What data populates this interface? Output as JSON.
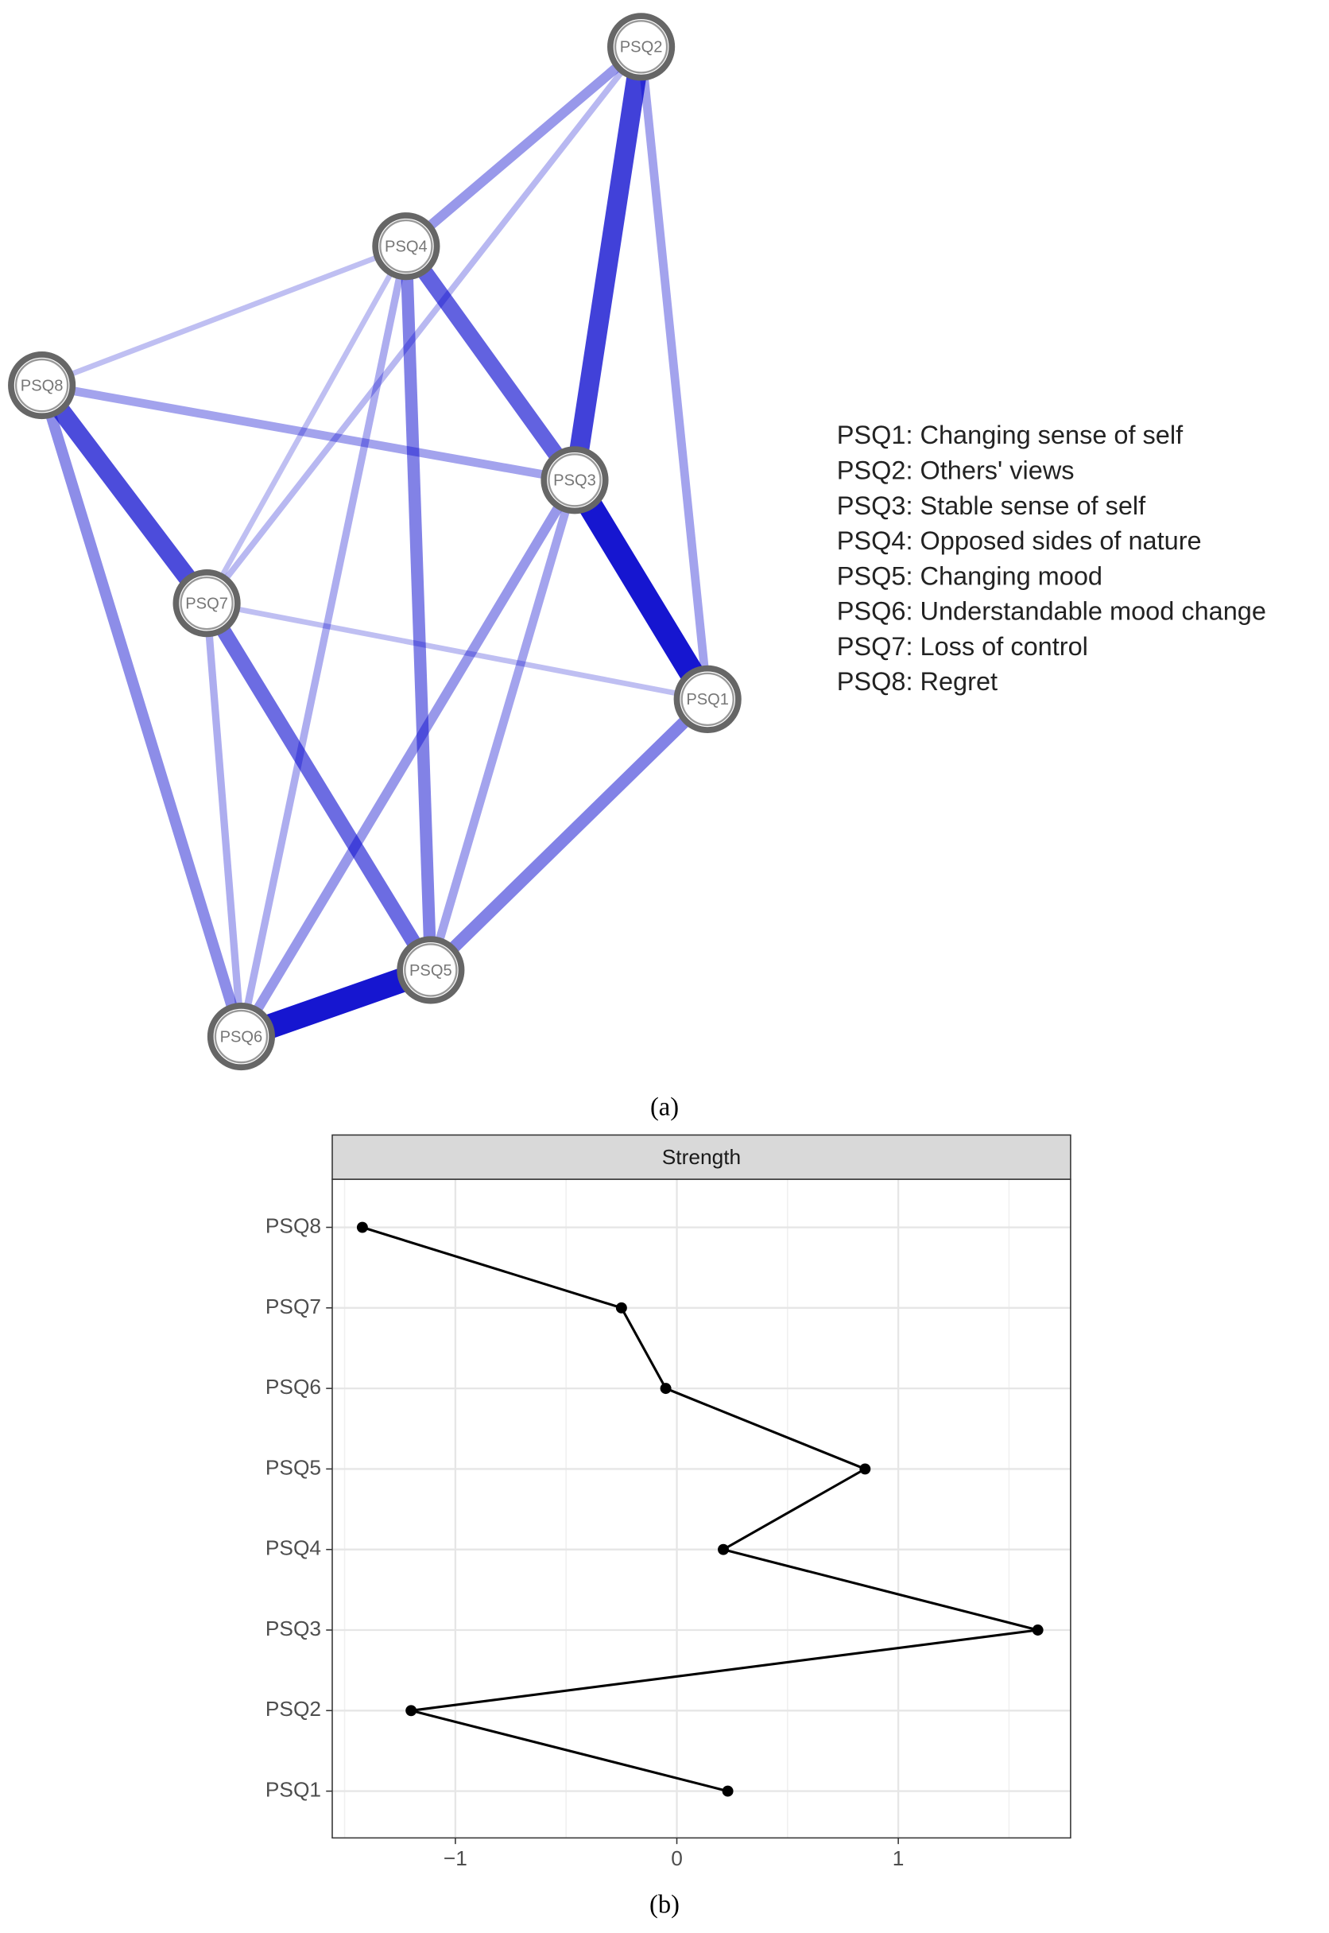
{
  "chart_data": [
    {
      "type": "network",
      "caption": "(a)",
      "nodes": [
        "PSQ1",
        "PSQ2",
        "PSQ3",
        "PSQ4",
        "PSQ5",
        "PSQ6",
        "PSQ7",
        "PSQ8"
      ],
      "edges": [
        {
          "source": "PSQ3",
          "target": "PSQ1",
          "weight": 0.9
        },
        {
          "source": "PSQ5",
          "target": "PSQ6",
          "weight": 0.9
        },
        {
          "source": "PSQ2",
          "target": "PSQ3",
          "weight": 0.7
        },
        {
          "source": "PSQ8",
          "target": "PSQ7",
          "weight": 0.65
        },
        {
          "source": "PSQ4",
          "target": "PSQ3",
          "weight": 0.55
        },
        {
          "source": "PSQ7",
          "target": "PSQ5",
          "weight": 0.5
        },
        {
          "source": "PSQ1",
          "target": "PSQ5",
          "weight": 0.4
        },
        {
          "source": "PSQ4",
          "target": "PSQ5",
          "weight": 0.4
        },
        {
          "source": "PSQ8",
          "target": "PSQ6",
          "weight": 0.35
        },
        {
          "source": "PSQ2",
          "target": "PSQ4",
          "weight": 0.3
        },
        {
          "source": "PSQ3",
          "target": "PSQ6",
          "weight": 0.3
        },
        {
          "source": "PSQ2",
          "target": "PSQ1",
          "weight": 0.25
        },
        {
          "source": "PSQ8",
          "target": "PSQ3",
          "weight": 0.25
        },
        {
          "source": "PSQ3",
          "target": "PSQ5",
          "weight": 0.25
        },
        {
          "source": "PSQ4",
          "target": "PSQ6",
          "weight": 0.2
        },
        {
          "source": "PSQ7",
          "target": "PSQ6",
          "weight": 0.2
        },
        {
          "source": "PSQ2",
          "target": "PSQ7",
          "weight": 0.15
        },
        {
          "source": "PSQ4",
          "target": "PSQ7",
          "weight": 0.12
        },
        {
          "source": "PSQ8",
          "target": "PSQ4",
          "weight": 0.12
        },
        {
          "source": "PSQ7",
          "target": "PSQ1",
          "weight": 0.12
        }
      ],
      "color": "#0000cc",
      "legend": [
        "PSQ1: Changing sense of self",
        "PSQ2: Others' views",
        "PSQ3: Stable sense of self",
        "PSQ4: Opposed sides of nature",
        "PSQ5: Changing mood",
        "PSQ6: Understandable mood change",
        "PSQ7: Loss of control",
        "PSQ8: Regret"
      ]
    },
    {
      "type": "line",
      "caption": "(b)",
      "strip": "Strength",
      "orientation": "horizontal",
      "categories": [
        "PSQ1",
        "PSQ2",
        "PSQ3",
        "PSQ4",
        "PSQ5",
        "PSQ6",
        "PSQ7",
        "PSQ8"
      ],
      "values": [
        0.23,
        -1.2,
        1.63,
        0.21,
        0.85,
        -0.05,
        -0.25,
        -1.42
      ],
      "color": "#000000",
      "xlim": [
        -1.556,
        1.778
      ],
      "xticks": [
        {
          "value": -1,
          "label": "−1"
        },
        0,
        1
      ],
      "grid": true
    }
  ]
}
